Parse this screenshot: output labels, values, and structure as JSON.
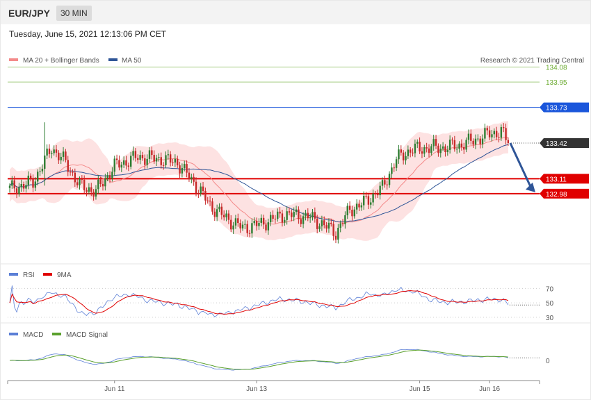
{
  "header": {
    "symbol": "EUR/JPY",
    "timeframe": "30 MIN"
  },
  "timestamp": "Tuesday, June 15, 2021 12:13:06 PM CET",
  "copyright": "Research © 2021 Trading Central",
  "colors": {
    "bollinger": "#f48a8a",
    "bollinger_fill": "#fde2e2",
    "ma50": "#2f5597",
    "target": "#6aaa2e",
    "support": "#e00000",
    "resistance": "#1a56db",
    "last_price": "#333333",
    "candle_up": "#2e7d32",
    "candle_down": "#c62828",
    "rsi": "#5b7fd6",
    "rsi_ma": "#e00000",
    "macd": "#5b7fd6",
    "macd_signal": "#5aa02c",
    "arrow": "#2f5597"
  },
  "chart_data": [
    {
      "type": "candlestick",
      "legend": [
        {
          "name": "MA 20 + Bollinger Bands"
        },
        {
          "name": "MA 50"
        }
      ],
      "x_ticks": [
        "Jun 11",
        "Jun 13",
        "Jun 15",
        "Jun 16"
      ],
      "ylim": [
        132.4,
        134.15
      ],
      "last_price": 133.42,
      "levels": [
        {
          "label": "134.08",
          "value": 134.08,
          "kind": "target"
        },
        {
          "label": "133.95",
          "value": 133.95,
          "kind": "target"
        },
        {
          "label": "133.73",
          "value": 133.73,
          "kind": "resistance"
        },
        {
          "label": "133.42",
          "value": 133.42,
          "kind": "last"
        },
        {
          "label": "133.11",
          "value": 133.11,
          "kind": "support"
        },
        {
          "label": "132.98",
          "value": 132.98,
          "kind": "support"
        }
      ],
      "close_anchors": [
        [
          0,
          133.02
        ],
        [
          10,
          133.08
        ],
        [
          18,
          133.38
        ],
        [
          24,
          133.25
        ],
        [
          30,
          133.05
        ],
        [
          37,
          133.0
        ],
        [
          45,
          133.22
        ],
        [
          55,
          133.3
        ],
        [
          65,
          133.28
        ],
        [
          72,
          133.25
        ],
        [
          80,
          133.05
        ],
        [
          86,
          132.88
        ],
        [
          92,
          132.78
        ],
        [
          100,
          132.68
        ],
        [
          108,
          132.72
        ],
        [
          118,
          132.8
        ],
        [
          128,
          132.78
        ],
        [
          134,
          132.72
        ],
        [
          140,
          132.64
        ],
        [
          146,
          132.84
        ],
        [
          152,
          132.9
        ],
        [
          160,
          133.03
        ],
        [
          166,
          133.28
        ],
        [
          172,
          133.36
        ],
        [
          180,
          133.38
        ],
        [
          186,
          133.38
        ],
        [
          193,
          133.4
        ],
        [
          200,
          133.45
        ],
        [
          206,
          133.5
        ],
        [
          211,
          133.52
        ],
        [
          214,
          133.42
        ]
      ],
      "series": [
        {
          "name": "MA 20"
        },
        {
          "name": "MA 50"
        },
        {
          "name": "Bollinger Upper"
        },
        {
          "name": "Bollinger Lower"
        }
      ]
    },
    {
      "type": "line",
      "legend": [
        {
          "name": "RSI"
        },
        {
          "name": "9MA"
        }
      ],
      "y_ticks": [
        70,
        50,
        30
      ],
      "ylim": [
        25,
        80
      ],
      "last_value": 47
    },
    {
      "type": "line",
      "legend": [
        {
          "name": "MACD"
        },
        {
          "name": "MACD Signal"
        }
      ],
      "y_ticks": [
        0
      ]
    }
  ]
}
